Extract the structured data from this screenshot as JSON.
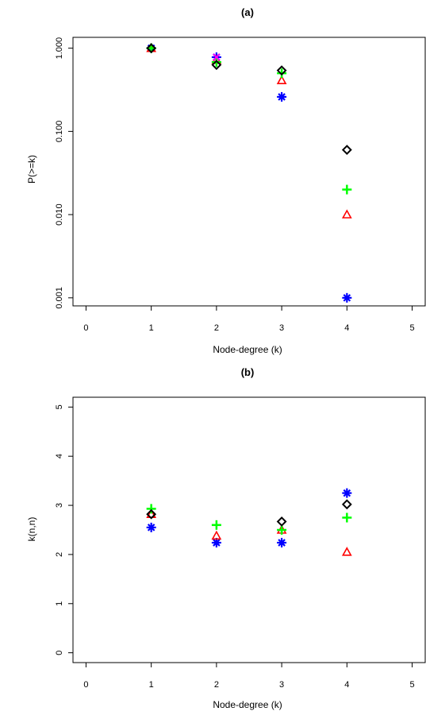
{
  "chart_data": [
    {
      "type": "scatter",
      "title": "(a)",
      "xlabel": "Node-degree (k)",
      "ylabel": "P(>=k)",
      "yscale": "log",
      "xlim": [
        -0.2,
        5.2
      ],
      "ylim": [
        0.0008,
        1.35
      ],
      "xticks": [
        "0",
        "1",
        "2",
        "3",
        "4",
        "5"
      ],
      "yticks": [
        "0.001",
        "0.010",
        "0.100",
        "1.000"
      ],
      "grid": false,
      "series": [
        {
          "marker": "cross-plus",
          "color": "#0000ff",
          "x": [
            1,
            2,
            3,
            4
          ],
          "y": [
            1.0,
            0.78,
            0.26,
            0.001
          ]
        },
        {
          "marker": "triangle",
          "color": "#ff0000",
          "x": [
            1,
            2,
            3,
            4
          ],
          "y": [
            1.0,
            0.72,
            0.41,
            0.01
          ]
        },
        {
          "marker": "plus",
          "color": "#00ff00",
          "x": [
            1,
            2,
            3,
            4
          ],
          "y": [
            1.0,
            0.68,
            0.5,
            0.02
          ]
        },
        {
          "marker": "diamond",
          "color": "#000000",
          "x": [
            1,
            2,
            3,
            4
          ],
          "y": [
            1.0,
            0.63,
            0.54,
            0.06
          ]
        },
        {
          "marker": "cross",
          "color": "#ff00ff",
          "x": [
            2
          ],
          "y": [
            0.78
          ]
        }
      ]
    },
    {
      "type": "scatter",
      "title": "(b)",
      "xlabel": "Node-degree (k)",
      "ylabel": "k(n,n)",
      "xlim": [
        -0.2,
        5.2
      ],
      "ylim": [
        -0.2,
        5.2
      ],
      "xticks": [
        "0",
        "1",
        "2",
        "3",
        "4",
        "5"
      ],
      "yticks": [
        "0",
        "1",
        "2",
        "3",
        "4",
        "5"
      ],
      "grid": false,
      "series": [
        {
          "marker": "cross-plus",
          "color": "#0000ff",
          "x": [
            1,
            2,
            3,
            4
          ],
          "y": [
            2.55,
            2.24,
            2.24,
            3.25
          ]
        },
        {
          "marker": "triangle",
          "color": "#ff0000",
          "x": [
            1,
            2,
            3,
            4
          ],
          "y": [
            2.82,
            2.38,
            2.5,
            2.05
          ]
        },
        {
          "marker": "plus",
          "color": "#00ff00",
          "x": [
            1,
            2,
            3,
            4
          ],
          "y": [
            2.93,
            2.6,
            2.5,
            2.75
          ]
        },
        {
          "marker": "diamond",
          "color": "#000000",
          "x": [
            1,
            3,
            4
          ],
          "y": [
            2.82,
            2.67,
            3.02
          ]
        }
      ]
    }
  ]
}
